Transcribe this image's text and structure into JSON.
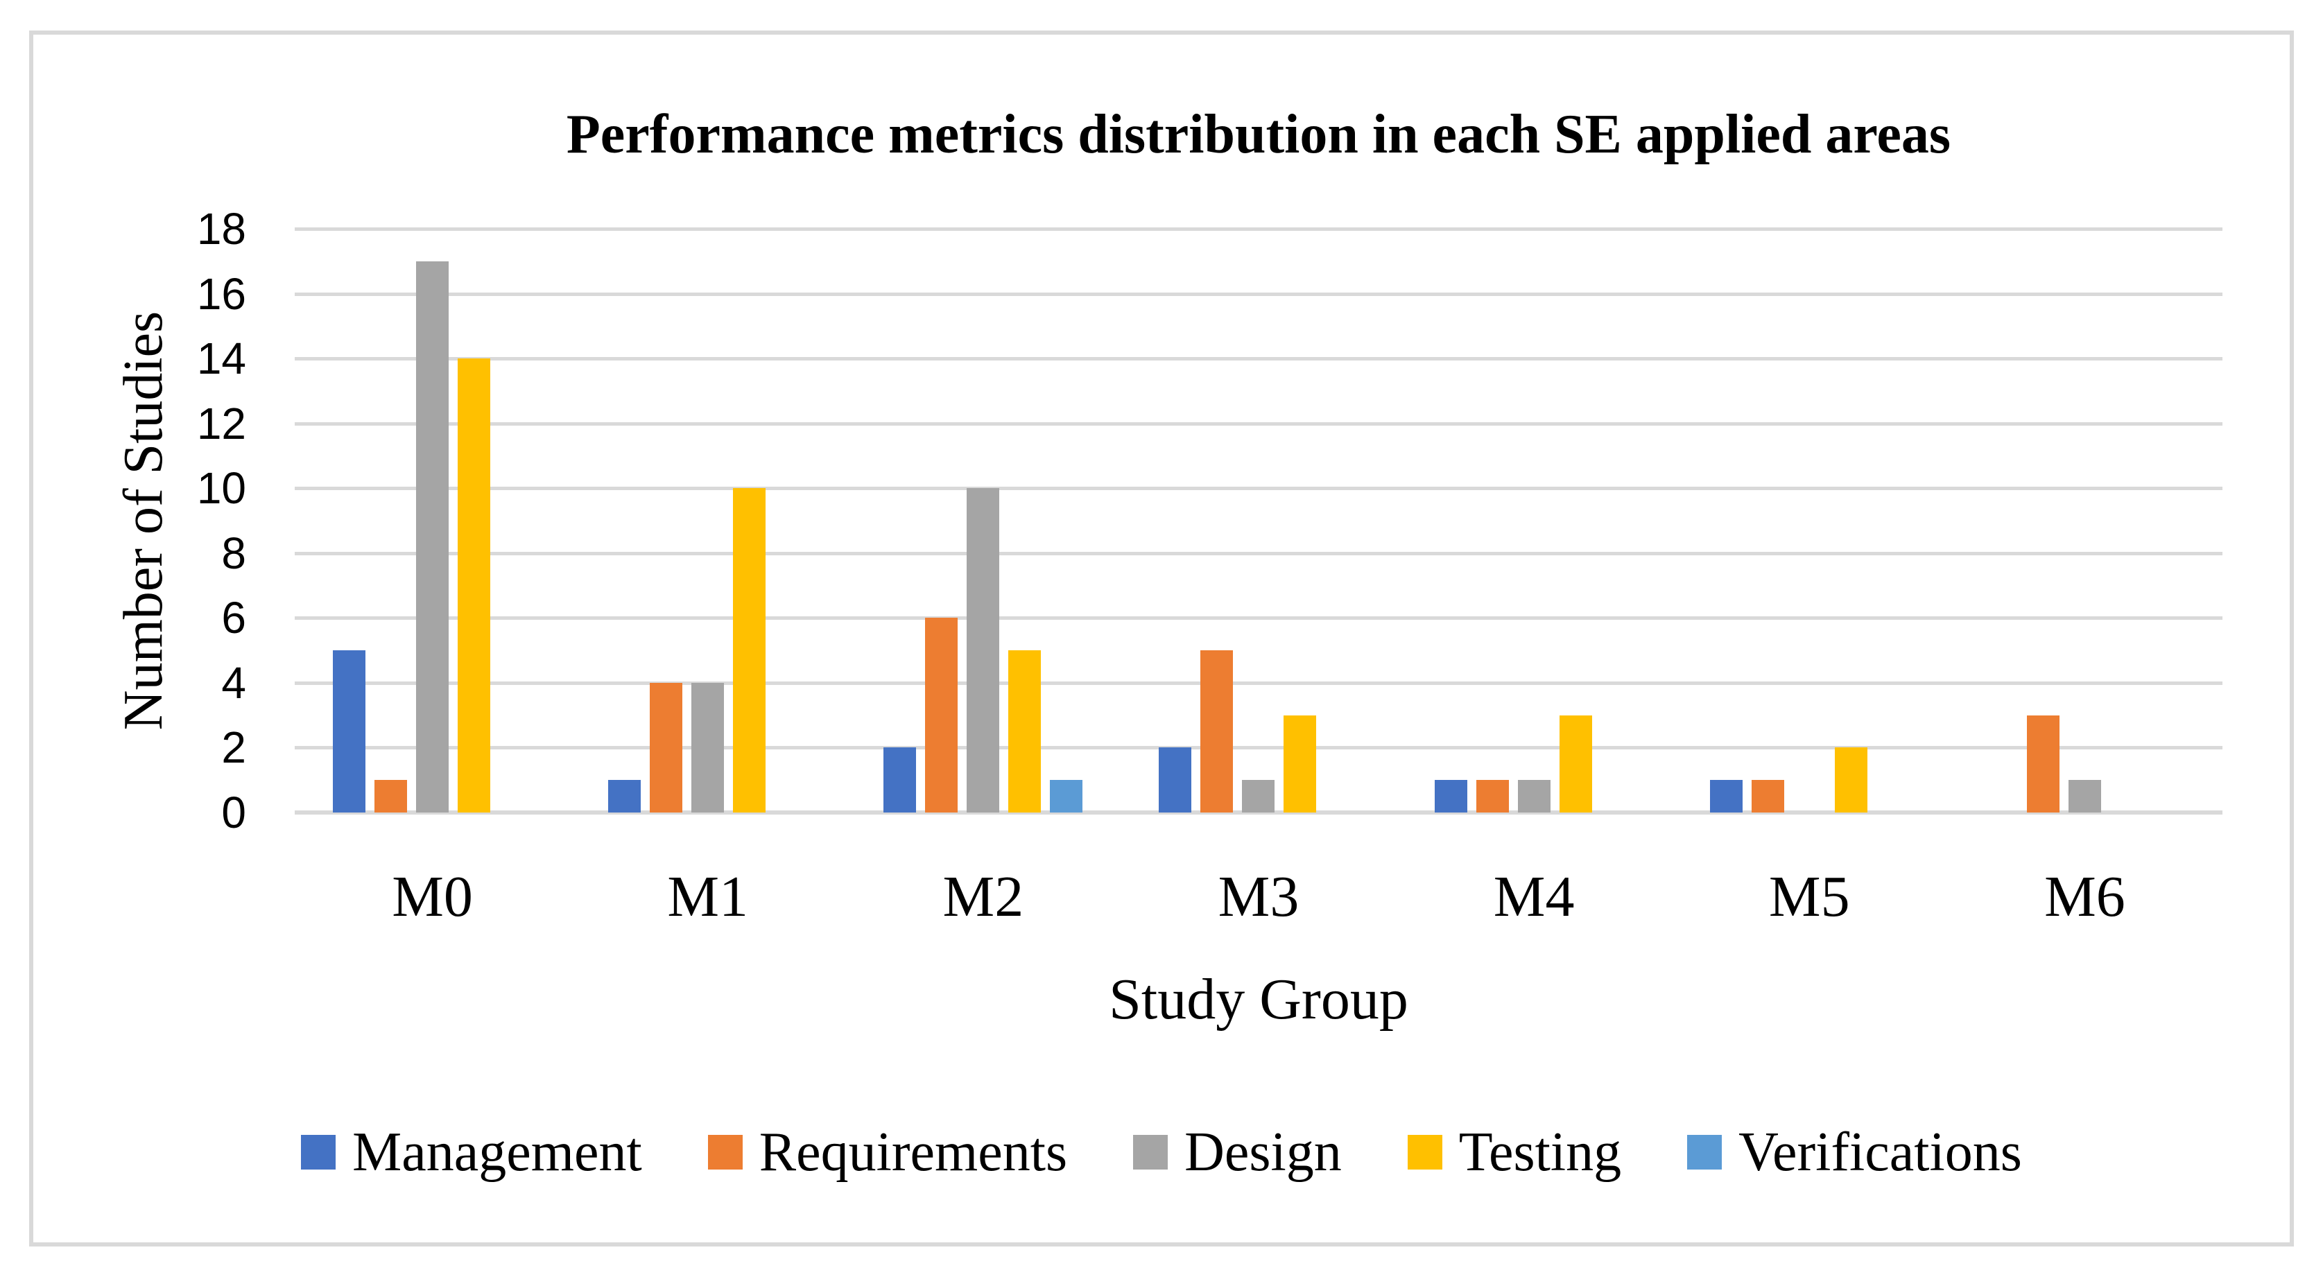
{
  "chart_data": {
    "type": "bar",
    "title": "Performance metrics distribution in each SE applied areas",
    "xlabel": "Study Group",
    "ylabel": "Number of Studies",
    "categories": [
      "M0",
      "M1",
      "M2",
      "M3",
      "M4",
      "M5",
      "M6"
    ],
    "series": [
      {
        "name": "Management",
        "color": "#4472C4",
        "values": [
          5,
          1,
          2,
          2,
          1,
          1,
          0
        ]
      },
      {
        "name": "Requirements",
        "color": "#ED7D31",
        "values": [
          1,
          4,
          6,
          5,
          1,
          1,
          3
        ]
      },
      {
        "name": "Design",
        "color": "#A5A5A5",
        "values": [
          17,
          4,
          10,
          1,
          1,
          0,
          1
        ]
      },
      {
        "name": "Testing",
        "color": "#FFC000",
        "values": [
          14,
          10,
          5,
          3,
          3,
          2,
          0
        ]
      },
      {
        "name": "Verifications",
        "color": "#5B9BD5",
        "values": [
          0,
          0,
          1,
          0,
          0,
          0,
          0
        ]
      }
    ],
    "ylim": [
      0,
      18
    ],
    "ytick_step": 2,
    "grid": "horizontal",
    "gridline_color": "#D9D9D9",
    "frame_border_color": "#D9D9D9",
    "legend_position": "bottom"
  }
}
